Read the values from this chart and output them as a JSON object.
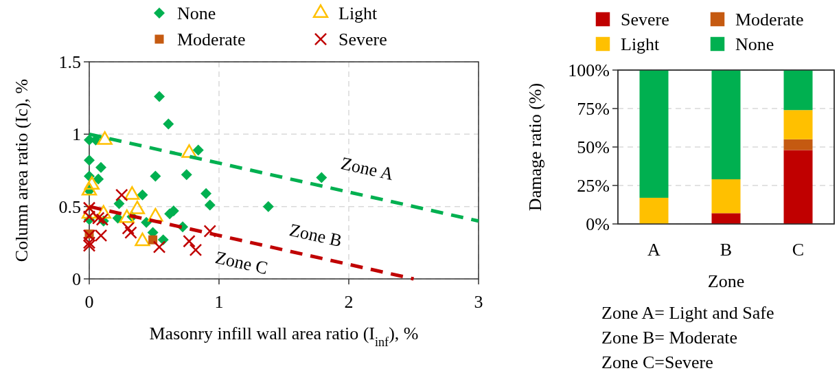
{
  "chart_data": [
    {
      "type": "scatter",
      "xlabel": "Masonry infill wall area ratio (I$_{inf}$), %",
      "ylabel": "Column area ratio (Ic), %",
      "xlim": [
        0,
        3
      ],
      "xticks": [
        0,
        1,
        2,
        3
      ],
      "ylim": [
        0,
        1.5
      ],
      "yticks": [
        0,
        0.5,
        1,
        1.5
      ],
      "grid": true,
      "legend": "top",
      "series": [
        {
          "name": "None",
          "color": "#00b050",
          "marker": "diamond",
          "x": [
            0.54,
            0.61,
            0,
            0.05,
            0,
            0.09,
            0.84,
            0,
            0.07,
            0.51,
            0.75,
            0,
            0.41,
            0.9,
            0.93,
            1.38,
            0.23,
            0.22,
            0,
            0.33,
            0.11,
            0.44,
            0.65,
            0.62,
            0.72,
            0.49,
            0.57,
            1.79
          ],
          "values": [
            1.26,
            1.07,
            0.96,
            0.96,
            0.82,
            0.77,
            0.89,
            0.71,
            0.69,
            0.71,
            0.72,
            0.61,
            0.58,
            0.59,
            0.51,
            0.5,
            0.52,
            0.42,
            0.41,
            0.43,
            0.4,
            0.39,
            0.47,
            0.45,
            0.36,
            0.32,
            0.27,
            0.7
          ]
        },
        {
          "name": "Light",
          "color": "#ffc000",
          "marker": "triangle",
          "x": [
            0.12,
            0.77,
            0.02,
            0,
            0.33,
            0.37,
            0.51,
            0.11,
            0.29,
            0,
            0.41
          ],
          "values": [
            0.96,
            0.87,
            0.65,
            0.61,
            0.58,
            0.48,
            0.43,
            0.45,
            0.42,
            0.45,
            0.26
          ]
        },
        {
          "name": "Moderate",
          "color": "#c55a11",
          "marker": "square",
          "x": [
            0.49,
            0
          ],
          "values": [
            0.27,
            0.31
          ]
        },
        {
          "name": "Severe",
          "color": "#c00000",
          "marker": "cross",
          "x": [
            0.25,
            0,
            0,
            0.07,
            0.1,
            0.3,
            0.32,
            0.09,
            0,
            0,
            0,
            0.93,
            0.77,
            0.82,
            0.54
          ],
          "values": [
            0.58,
            0.49,
            0.43,
            0.42,
            0.41,
            0.35,
            0.32,
            0.3,
            0.3,
            0.25,
            0.23,
            0.33,
            0.26,
            0.2,
            0.22
          ]
        },
        {
          "type": "line",
          "color": "#00b050",
          "line_style": "dashed",
          "x": [
            0,
            3
          ],
          "values": [
            1.0,
            0.4
          ]
        },
        {
          "type": "line",
          "color": "#c00000",
          "line_style": "dashed",
          "x": [
            0,
            2.5
          ],
          "values": [
            0.5,
            0
          ]
        }
      ],
      "annotations": [
        "Zone A",
        "Zone B",
        "Zone C"
      ]
    },
    {
      "type": "bar",
      "stacked": true,
      "categories": [
        "A",
        "B",
        "C"
      ],
      "xlabel": "Zone",
      "ylabel": "Damage ratio (%)",
      "ylim": [
        0,
        100
      ],
      "yticks": [
        {
          "value": 0,
          "label": "0%"
        },
        {
          "value": 25,
          "label": "25%"
        },
        {
          "value": 50,
          "label": "50%"
        },
        {
          "value": 75,
          "label": "75%"
        },
        {
          "value": 100,
          "label": "100%"
        }
      ],
      "grid": "y",
      "legend": "top",
      "series": [
        {
          "name": "Severe",
          "color": "#c00000",
          "values": [
            0,
            7,
            48
          ]
        },
        {
          "name": "Moderate",
          "color": "#c55a11",
          "values": [
            0,
            0,
            7
          ]
        },
        {
          "name": "Light",
          "color": "#ffc000",
          "values": [
            17,
            22,
            19
          ]
        },
        {
          "name": "None",
          "color": "#00b050",
          "values": [
            83,
            71,
            26
          ]
        }
      ],
      "annotations": [
        "Zone A= Light and Safe",
        "Zone B= Moderate",
        "Zone C=Severe"
      ]
    }
  ]
}
